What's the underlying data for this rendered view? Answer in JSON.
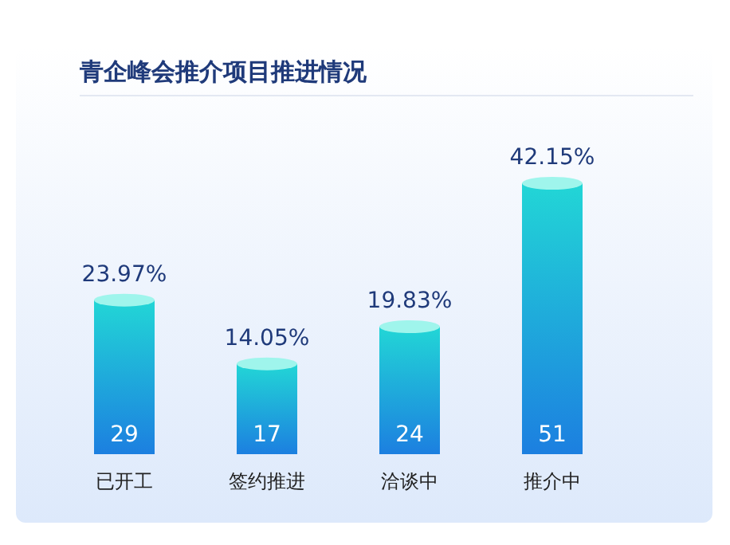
{
  "chart_data": {
    "type": "bar",
    "title": "青企峰会推介项目推进情况",
    "categories": [
      "已开工",
      "签约推进",
      "洽谈中",
      "推介中"
    ],
    "values": [
      29,
      17,
      24,
      51
    ],
    "color": "#22d6d6",
    "data_labels": true,
    "annotations": [
      {
        "text": "23.97%",
        "x": "已开工",
        "y": 29
      },
      {
        "text": "14.05%",
        "x": "签约推进",
        "y": 17
      },
      {
        "text": "19.83%",
        "x": "洽谈中",
        "y": 24
      },
      {
        "text": "42.15%",
        "x": "推介中",
        "y": 51
      }
    ]
  }
}
